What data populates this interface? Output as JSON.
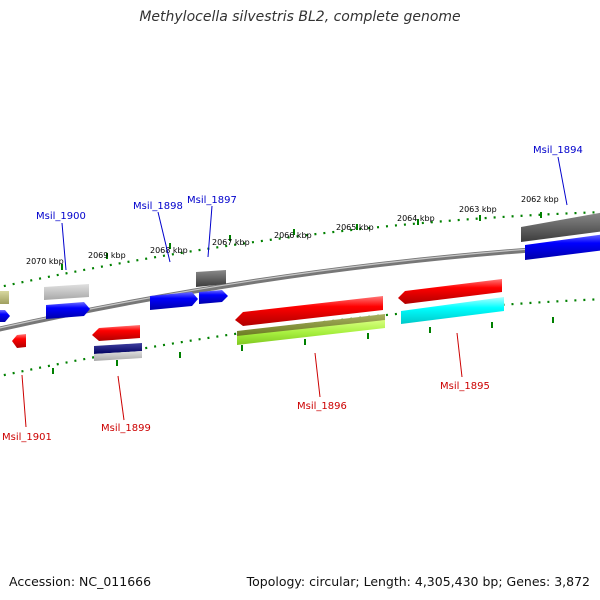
{
  "title": "Methylocella silvestris BL2, complete genome",
  "footer": {
    "accession": "Accession: NC_011666",
    "summary": "Topology: circular; Length: 4,305,430 bp; Genes: 3,872"
  },
  "colors": {
    "forward_label": "#0000cc",
    "reverse_label": "#cc0000",
    "tick": "#008000",
    "backbone": "#777777"
  },
  "scale_ticks": [
    "2070 kbp",
    "2069 kbp",
    "2068 kbp",
    "2067 kbp",
    "2066 kbp",
    "2065 kbp",
    "2064 kbp",
    "2063 kbp",
    "2062 kbp"
  ],
  "forward_gene_labels": [
    "Msil_1900",
    "Msil_1898",
    "Msil_1897",
    "Msil_1894"
  ],
  "reverse_gene_labels": [
    "Msil_1901",
    "Msil_1899",
    "Msil_1896",
    "Msil_1895"
  ]
}
